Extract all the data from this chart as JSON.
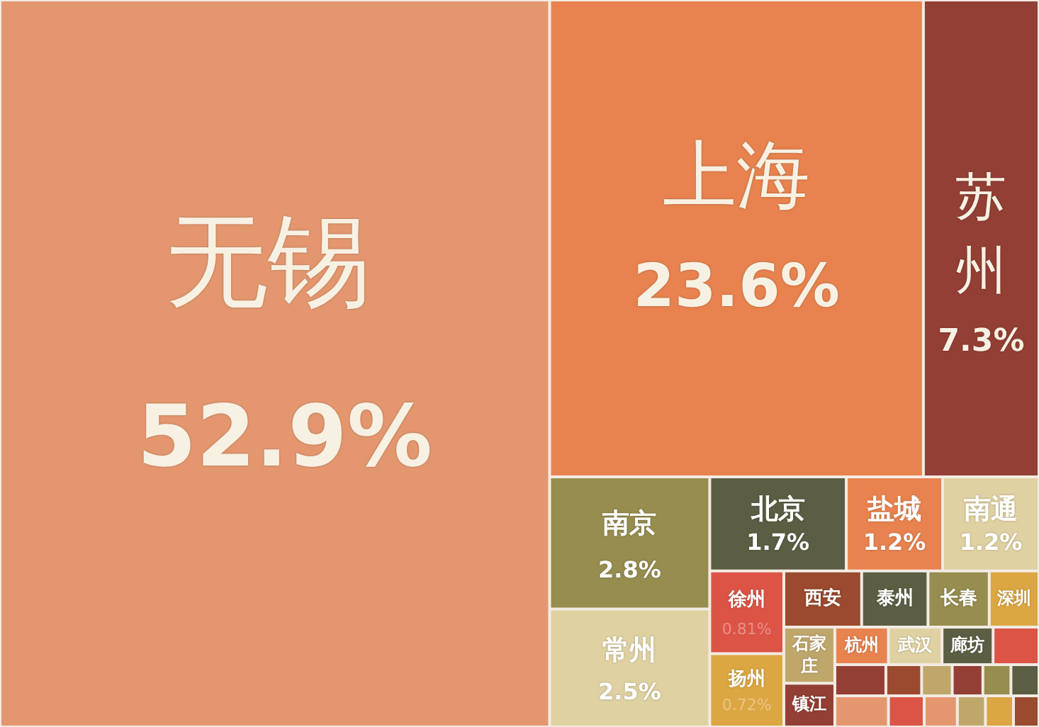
{
  "chart_data": {
    "type": "other",
    "categories": [
      "无锡",
      "上海",
      "苏州",
      "南京",
      "常州",
      "北京",
      "盐城",
      "南通",
      "徐州",
      "扬州",
      "西安",
      "泰州",
      "长春",
      "深圳",
      "石家庄",
      "镇江",
      "杭州",
      "武汉",
      "廊坊",
      null,
      null,
      null,
      null,
      null,
      null,
      null,
      null,
      null,
      null,
      null,
      null,
      null
    ],
    "values": [
      52.9,
      23.6,
      7.3,
      2.8,
      2.5,
      1.7,
      1.2,
      1.2,
      0.81,
      0.72,
      null,
      null,
      null,
      null,
      null,
      null,
      null,
      null,
      null,
      null,
      null,
      null,
      null,
      null,
      null,
      null,
      null,
      null,
      null,
      null,
      null,
      null
    ],
    "value_labels": [
      "52.9%",
      "23.6%",
      "7.3%",
      "2.8%",
      "2.5%",
      "1.7%",
      "1.2%",
      "1.2%",
      "0.81%",
      "0.72%",
      null,
      null,
      null,
      null,
      null,
      null,
      null,
      null,
      null,
      null,
      null,
      null,
      null,
      null,
      null,
      null,
      null,
      null,
      null,
      null,
      null,
      null
    ],
    "colors": [
      "#e4976f",
      "#e8834f",
      "#943f35",
      "#968d4f",
      "#dfd1a2",
      "#5b5e43",
      "#e8834f",
      "#dfd1a2",
      "#dc5446",
      "#dca642",
      "#9a4a2e",
      "#5b5e43",
      "#968d4f",
      "#dca642",
      "#bfa76c",
      "#943f35",
      "#e8834f",
      "#dfd1a2",
      "#5b5e43",
      "#dc5446",
      "#943f35",
      "#9a4a2e",
      "#bfa76c",
      "#943f35",
      "#968d4f",
      "#5b5e43",
      "#e4976f",
      "#dc5446",
      "#e4976f",
      "#bfa76c",
      "#dca642",
      "#9a4a2e"
    ]
  }
}
